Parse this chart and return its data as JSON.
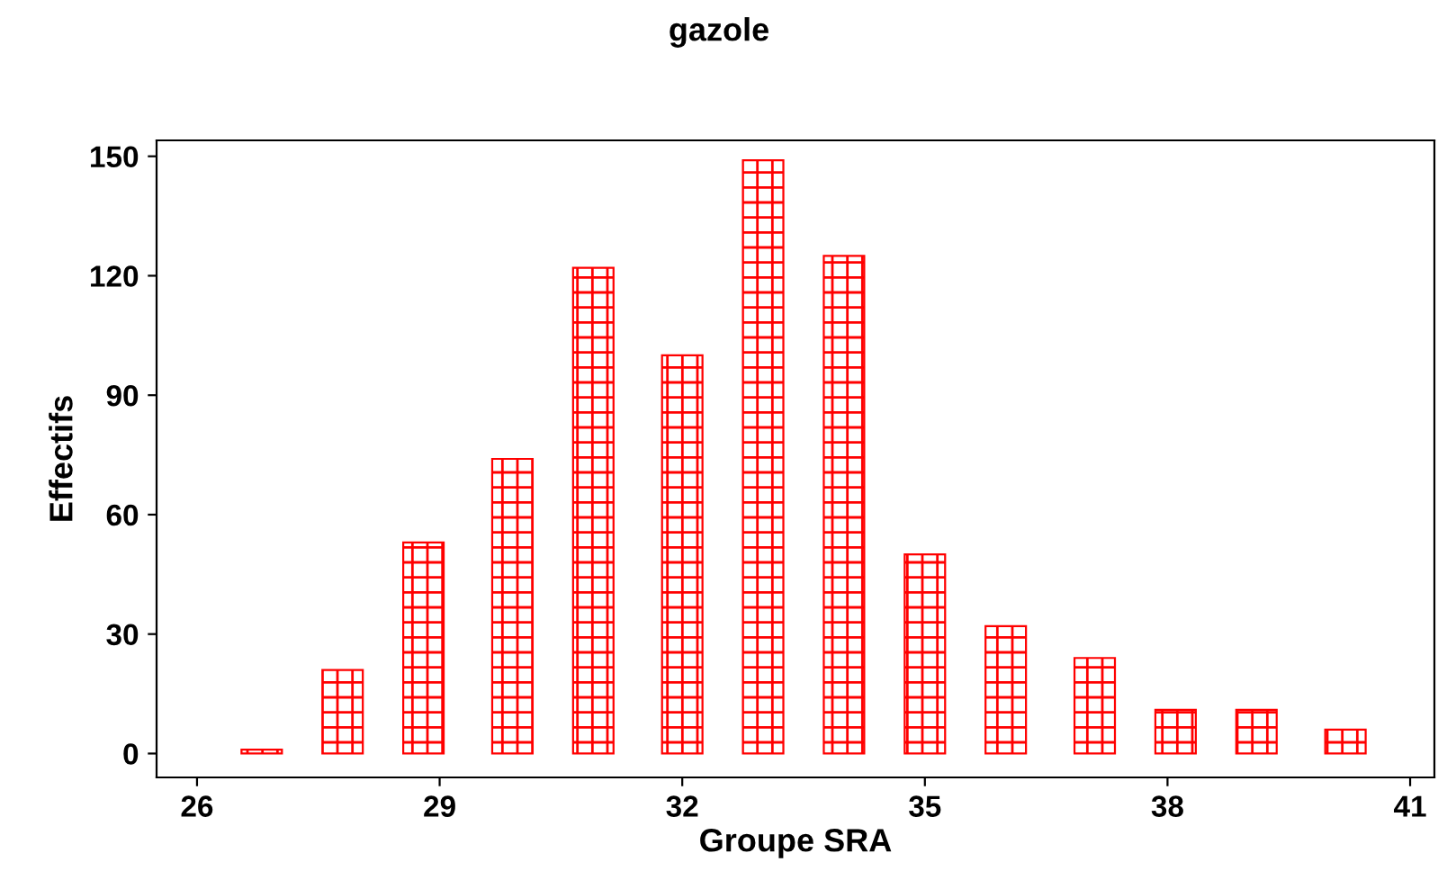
{
  "chart_data": {
    "type": "bar",
    "title": "gazole",
    "xlabel": "Groupe SRA",
    "ylabel": "Effectifs",
    "x": [
      26.8,
      27.8,
      28.8,
      29.9,
      30.9,
      32.0,
      33.0,
      34.0,
      35.0,
      36.0,
      37.1,
      38.1,
      39.1,
      40.2
    ],
    "values": [
      1,
      21,
      53,
      74,
      122,
      100,
      149,
      125,
      50,
      32,
      24,
      11,
      11,
      6
    ],
    "color": "#ff0000",
    "xlim": [
      25.5,
      41.3
    ],
    "xticks": [
      26,
      29,
      32,
      35,
      38,
      41
    ],
    "ylim": [
      -6,
      154
    ],
    "yticks": [
      0,
      30,
      60,
      90,
      120,
      150
    ],
    "grid": false
  }
}
